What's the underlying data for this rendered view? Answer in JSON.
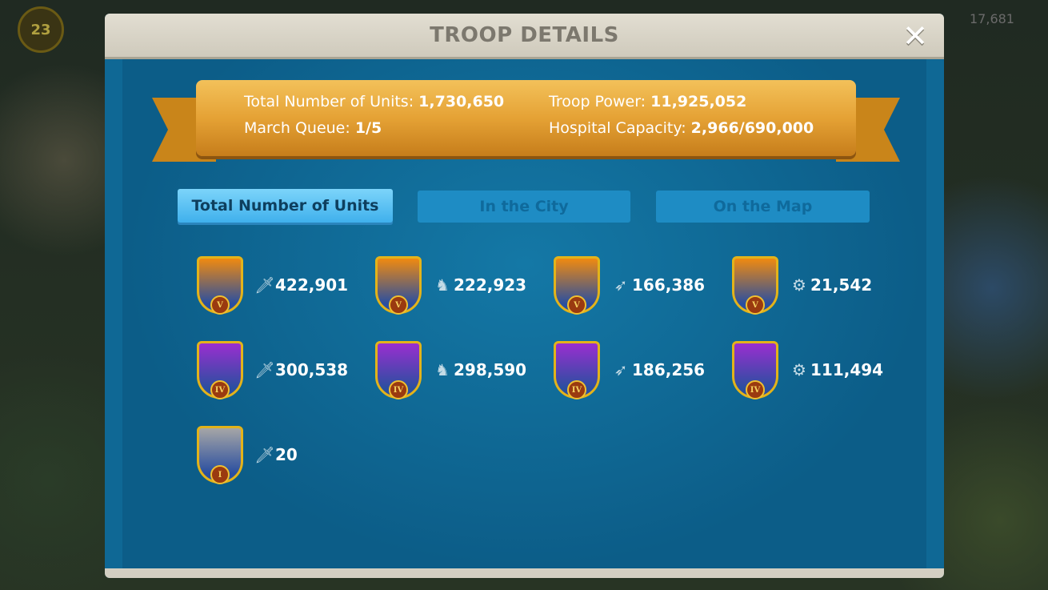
{
  "background": {
    "player_level": "23",
    "resource": "17,681"
  },
  "header": {
    "title": "TROOP DETAILS"
  },
  "summary": {
    "total_units_label": "Total Number of Units:",
    "total_units": "1,730,650",
    "troop_power_label": "Troop Power:",
    "troop_power": "11,925,052",
    "march_queue_label": "March Queue:",
    "march_queue": "1/5",
    "hospital_label": "Hospital Capacity:",
    "hospital": "2,966/690,000"
  },
  "tabs": [
    {
      "label": "Total Number of Units",
      "active": true
    },
    {
      "label": "In the City",
      "active": false
    },
    {
      "label": "On the Map",
      "active": false
    }
  ],
  "units": [
    {
      "type": "infantry",
      "tier": "V",
      "count": "422,901",
      "color": "#f08a10"
    },
    {
      "type": "cavalry",
      "tier": "V",
      "count": "222,923",
      "color": "#f08a10"
    },
    {
      "type": "archer",
      "tier": "V",
      "count": "166,386",
      "color": "#f08a10"
    },
    {
      "type": "siege",
      "tier": "V",
      "count": "21,542",
      "color": "#f08a10"
    },
    {
      "type": "infantry",
      "tier": "IV",
      "count": "300,538",
      "color": "#9a2ed0"
    },
    {
      "type": "cavalry",
      "tier": "IV",
      "count": "298,590",
      "color": "#9a2ed0"
    },
    {
      "type": "archer",
      "tier": "IV",
      "count": "186,256",
      "color": "#9a2ed0"
    },
    {
      "type": "siege",
      "tier": "IV",
      "count": "111,494",
      "color": "#9a2ed0"
    },
    {
      "type": "infantry",
      "tier": "I",
      "count": "20",
      "color": "#a6a6a6"
    }
  ]
}
